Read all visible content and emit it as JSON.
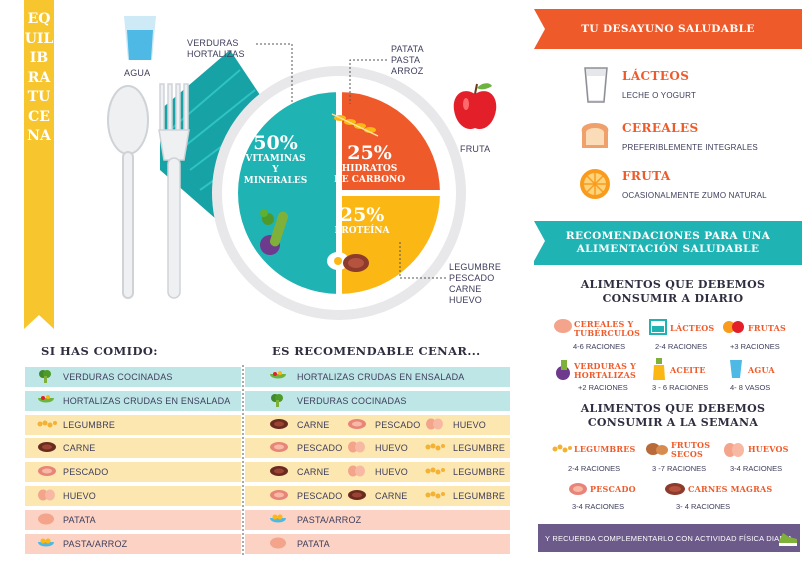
{
  "ribbon": {
    "title": "EQUILIBRA TU CENA"
  },
  "plate": {
    "labels": {
      "agua": "AGUA",
      "verduras": "VERDURAS\nHORTALIZAS",
      "patata": "PATATA\nPASTA\nARROZ",
      "fruta": "FRUTA",
      "legumbre": "LEGUMBRE\nPESCADO\nCARNE\nHUEVO"
    },
    "segments": [
      {
        "pct": "50%",
        "text": "VITAMINAS\nY\nMINERALES",
        "share": 50,
        "color": "#1fb3b4"
      },
      {
        "pct": "25%",
        "text": "HIDRATOS\nDE CARBONO",
        "share": 25,
        "color": "#ef5a2a"
      },
      {
        "pct": "25%",
        "text": "PROTEÍNA",
        "share": 25,
        "color": "#fbb714"
      }
    ]
  },
  "desayuno": {
    "title": "TU DESAYUNO SALUDABLE",
    "items": [
      {
        "name": "LÁCTEOS",
        "sub": "LECHE O YOGURT"
      },
      {
        "name": "CEREALES",
        "sub": "PREFERIBLEMENTE INTEGRALES"
      },
      {
        "name": "FRUTA",
        "sub": "OCASIONALMENTE ZUMO NATURAL"
      }
    ]
  },
  "recomendaciones": {
    "title": "RECOMENDACIONES PARA UNA\nALIMENTACIÓN SALUDABLE",
    "diario_title": "ALIMENTOS QUE DEBEMOS\nCONSUMIR A DIARIO",
    "diario": [
      {
        "name": "CEREALES Y\nTUBÉRCULOS",
        "rac": "4-6 RACIONES"
      },
      {
        "name": "LÁCTEOS",
        "rac": "2-4 RACIONES"
      },
      {
        "name": "FRUTAS",
        "rac": "+3 RACIONES"
      },
      {
        "name": "VERDURAS Y\nHORTALIZAS",
        "rac": "+2 RACIONES"
      },
      {
        "name": "ACEITE",
        "rac": "3 - 6 RACIONES"
      },
      {
        "name": "AGUA",
        "rac": "4- 8 VASOS"
      }
    ],
    "semana_title": "ALIMENTOS QUE DEBEMOS\nCONSUMIR A LA SEMANA",
    "semana": [
      {
        "name": "LEGUMBRES",
        "rac": "2-4 RACIONES"
      },
      {
        "name": "FRUTOS\nSECOS",
        "rac": "3 -7 RACIONES"
      },
      {
        "name": "HUEVOS",
        "rac": "3-4 RACIONES"
      },
      {
        "name": "PESCADO",
        "rac": "3-4 RACIONES"
      },
      {
        "name": "CARNES MAGRAS",
        "rac": "3- 4 RACIONES"
      }
    ],
    "footer": "Y RECUERDA COMPLEMENTARLO CON ACTIVIDAD FÍSICA DIARIA"
  },
  "comido": {
    "title": "SI HAS COMIDO:",
    "rows": [
      "VERDURAS COCINADAS",
      "HORTALIZAS CRUDAS EN ENSALADA",
      "LEGUMBRE",
      "CARNE",
      "PESCADO",
      "HUEVO",
      "PATATA",
      "PASTA/ARROZ"
    ]
  },
  "cenar": {
    "title": "ES RECOMENDABLE CENAR...",
    "rows": [
      [
        "HORTALIZAS CRUDAS EN ENSALADA"
      ],
      [
        "VERDURAS COCINADAS"
      ],
      [
        "CARNE",
        "PESCADO",
        "HUEVO"
      ],
      [
        "PESCADO",
        "HUEVO",
        "LEGUMBRE"
      ],
      [
        "CARNE",
        "HUEVO",
        "LEGUMBRE"
      ],
      [
        "PESCADO",
        "CARNE",
        "LEGUMBRE"
      ],
      [
        "PASTA/ARROZ"
      ],
      [
        "PATATA"
      ]
    ]
  }
}
